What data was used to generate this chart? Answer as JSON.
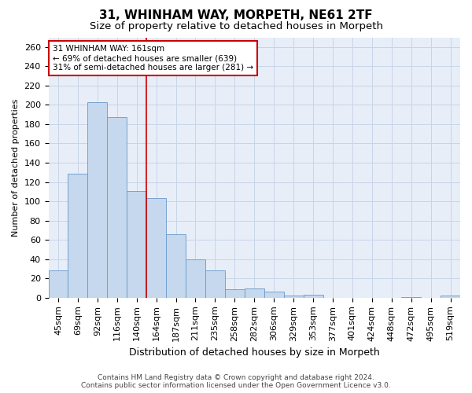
{
  "title1": "31, WHINHAM WAY, MORPETH, NE61 2TF",
  "title2": "Size of property relative to detached houses in Morpeth",
  "xlabel": "Distribution of detached houses by size in Morpeth",
  "ylabel": "Number of detached properties",
  "categories": [
    "45sqm",
    "69sqm",
    "92sqm",
    "116sqm",
    "140sqm",
    "164sqm",
    "187sqm",
    "211sqm",
    "235sqm",
    "258sqm",
    "282sqm",
    "306sqm",
    "329sqm",
    "353sqm",
    "377sqm",
    "401sqm",
    "424sqm",
    "448sqm",
    "472sqm",
    "495sqm",
    "519sqm"
  ],
  "values": [
    28,
    129,
    203,
    187,
    111,
    103,
    66,
    40,
    28,
    9,
    10,
    6,
    2,
    3,
    0,
    0,
    0,
    0,
    1,
    0,
    2
  ],
  "bar_color": "#c5d8ed",
  "bar_edge_color": "#6699cc",
  "vline_x": 4.5,
  "vline_color": "#cc0000",
  "annotation_line1": "31 WHINHAM WAY: 161sqm",
  "annotation_line2": "← 69% of detached houses are smaller (639)",
  "annotation_line3": "31% of semi-detached houses are larger (281) →",
  "annotation_box_color": "#ffffff",
  "annotation_box_edge": "#cc0000",
  "ylim": [
    0,
    270
  ],
  "yticks": [
    0,
    20,
    40,
    60,
    80,
    100,
    120,
    140,
    160,
    180,
    200,
    220,
    240,
    260
  ],
  "grid_color": "#c8d4e8",
  "background_color": "#e8eef8",
  "footer_line1": "Contains HM Land Registry data © Crown copyright and database right 2024.",
  "footer_line2": "Contains public sector information licensed under the Open Government Licence v3.0.",
  "title1_fontsize": 11,
  "title2_fontsize": 9.5,
  "xlabel_fontsize": 9,
  "ylabel_fontsize": 8,
  "tick_fontsize": 8,
  "annotation_fontsize": 7.5,
  "footer_fontsize": 6.5
}
